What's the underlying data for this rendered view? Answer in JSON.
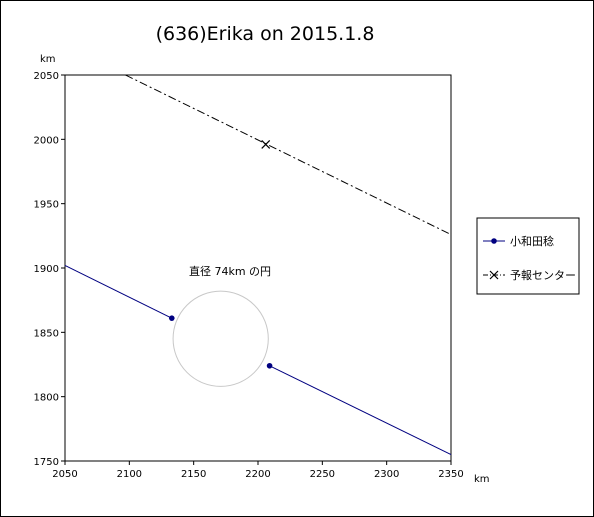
{
  "chart_data": {
    "type": "line",
    "title": "(636)Erika on 2015.1.8",
    "x_unit": "km",
    "y_unit": "km",
    "xlim": [
      2050,
      2350
    ],
    "ylim": [
      1750,
      2050
    ],
    "x_ticks": [
      2050,
      2100,
      2150,
      2200,
      2250,
      2300,
      2350
    ],
    "y_ticks": [
      1750,
      1800,
      1850,
      1900,
      1950,
      2000,
      2050
    ],
    "grid": false,
    "legend_position": "right",
    "series": [
      {
        "name": "小和田稔",
        "color": "#000080",
        "style": "solid",
        "marker": "dot",
        "segments": [
          {
            "x": [
              2050,
              2133
            ],
            "y": [
              1902,
              1861
            ],
            "marker_at_end": true
          },
          {
            "x": [
              2209,
              2350
            ],
            "y": [
              1824,
              1755
            ],
            "marker_at_start": true
          }
        ]
      },
      {
        "name": "予報センター",
        "color": "#000000",
        "style": "dashdot",
        "marker": "x",
        "line": {
          "x": [
            2097,
            2350
          ],
          "y": [
            2050,
            1926
          ]
        },
        "marker_point": {
          "x": 2206,
          "y": 1996
        }
      }
    ],
    "annotation": {
      "text": "直径 74km の円",
      "circle": {
        "cx": 2171,
        "cy": 1845,
        "r": 37,
        "color": "#c8c8c8"
      }
    }
  }
}
